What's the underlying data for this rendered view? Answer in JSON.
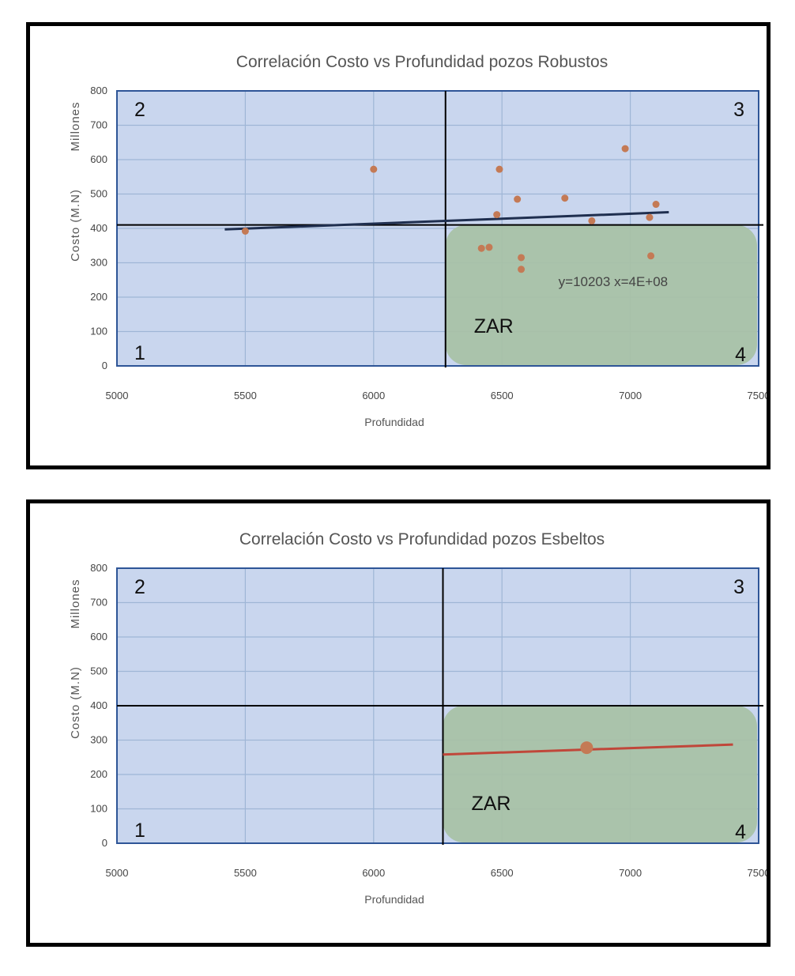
{
  "colors": {
    "plot_area": "#c9d6ee",
    "plot_border": "#2e5597",
    "grid": "#9fb6d6",
    "zar_zone": "#a7c1a5",
    "points": "#c47a55",
    "trend_robustos": "#1f2f4f",
    "trend_esbeltos": "#c0473a",
    "divider": "#000000"
  },
  "chart_data": [
    {
      "type": "scatter",
      "title": "Correlación Costo vs Profundidad pozos Robustos",
      "xlabel": "Profundidad",
      "ylabel": "Costo (M.N)",
      "yunit": "Millones",
      "xlim": [
        5000,
        7500
      ],
      "ylim": [
        0,
        800
      ],
      "xticks": [
        "5000",
        "5500",
        "6000",
        "6500",
        "7000",
        "7500"
      ],
      "yticks": [
        "0",
        "100",
        "200",
        "300",
        "400",
        "500",
        "600",
        "700",
        "800"
      ],
      "grid": true,
      "divider_x": 6280,
      "divider_y": 410,
      "quadrants": [
        "1",
        "2",
        "3",
        "4"
      ],
      "zone_label": "ZAR",
      "equation": "y=10203  x=4E+08",
      "points": [
        {
          "x": 5500,
          "y": 392
        },
        {
          "x": 6000,
          "y": 572
        },
        {
          "x": 6420,
          "y": 342
        },
        {
          "x": 6450,
          "y": 345
        },
        {
          "x": 6480,
          "y": 440
        },
        {
          "x": 6490,
          "y": 572
        },
        {
          "x": 6560,
          "y": 485
        },
        {
          "x": 6575,
          "y": 315
        },
        {
          "x": 6575,
          "y": 281
        },
        {
          "x": 6745,
          "y": 488
        },
        {
          "x": 6850,
          "y": 422
        },
        {
          "x": 6980,
          "y": 632
        },
        {
          "x": 7075,
          "y": 432
        },
        {
          "x": 7080,
          "y": 320
        },
        {
          "x": 7100,
          "y": 470
        }
      ],
      "trendline": {
        "x": [
          5420,
          7150
        ],
        "y": [
          397,
          447
        ]
      }
    },
    {
      "type": "scatter",
      "title": "Correlación Costo vs Profundidad pozos Esbeltos",
      "xlabel": "Profundidad",
      "ylabel": "Costo (M.N)",
      "yunit": "Millones",
      "xlim": [
        5000,
        7500
      ],
      "ylim": [
        0,
        800
      ],
      "xticks": [
        "5000",
        "5500",
        "6000",
        "6500",
        "7000",
        "7500"
      ],
      "yticks": [
        "0",
        "100",
        "200",
        "300",
        "400",
        "500",
        "600",
        "700",
        "800"
      ],
      "grid": true,
      "divider_x": 6270,
      "divider_y": 400,
      "quadrants": [
        "1",
        "2",
        "3",
        "4"
      ],
      "zone_label": "ZAR",
      "points": [
        {
          "x": 6830,
          "y": 278
        }
      ],
      "trendline": {
        "x": [
          6270,
          7400
        ],
        "y": [
          258,
          287
        ]
      }
    }
  ]
}
